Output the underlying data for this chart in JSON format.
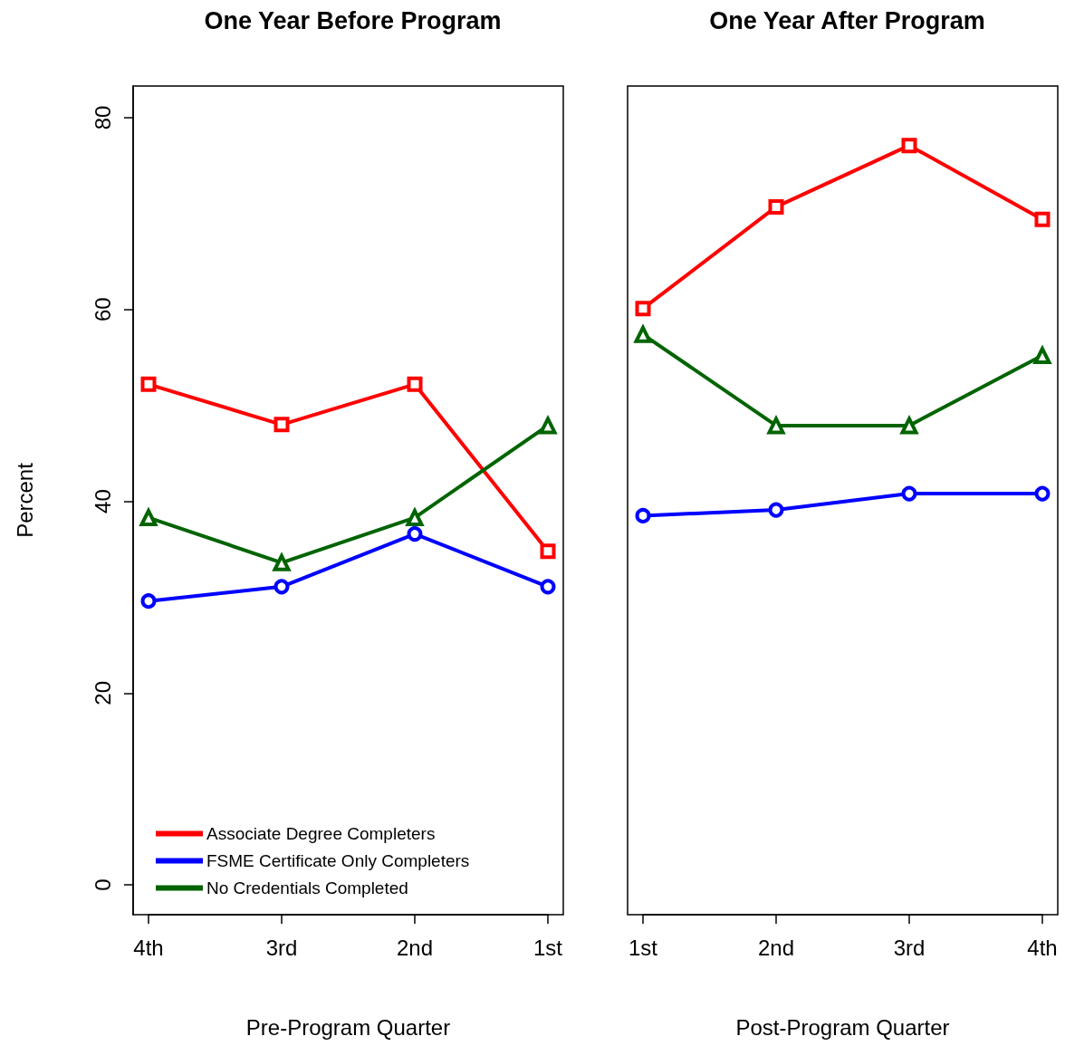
{
  "chart_data": [
    {
      "type": "line",
      "title": "One Year Before Program",
      "xlabel": "Pre-Program Quarter",
      "ylabel": "Percent",
      "categories": [
        "4th",
        "3rd",
        "2nd",
        "1st"
      ],
      "ylim": [
        -3.1,
        83.3
      ],
      "yticks": [
        0,
        20,
        40,
        60,
        80
      ],
      "grid": false,
      "legend": "bottom left",
      "line_style": "solid",
      "series": [
        {
          "name": "Associate Degree Completers",
          "color": "#ff0000",
          "marker": "square",
          "values": [
            52.2,
            48.0,
            52.2,
            34.8
          ]
        },
        {
          "name": "FSME Certificate Only Completers",
          "color": "#0000ff",
          "marker": "circle",
          "values": [
            29.6,
            31.1,
            36.6,
            31.1
          ]
        },
        {
          "name": "No Credentials Completed",
          "color": "#006400",
          "marker": "triangle",
          "values": [
            38.3,
            33.6,
            38.3,
            47.9
          ]
        }
      ]
    },
    {
      "type": "line",
      "title": "One Year After Program",
      "xlabel": "Post-Program Quarter",
      "categories": [
        "1st",
        "2nd",
        "3rd",
        "4th"
      ],
      "ylim": [
        -3.1,
        83.3
      ],
      "yticks": [
        0,
        20,
        40,
        60,
        80
      ],
      "grid": false,
      "legend": false,
      "tick_labels": "x",
      "line_style": "solid",
      "series": [
        {
          "color": "#ff0000",
          "marker": "square",
          "values": [
            60.1,
            70.7,
            77.1,
            69.4
          ]
        },
        {
          "color": "#0000ff",
          "marker": "circle",
          "values": [
            38.5,
            39.1,
            40.8,
            40.8
          ]
        },
        {
          "color": "#006400",
          "marker": "triangle",
          "values": [
            57.4,
            47.9,
            47.9,
            55.2
          ]
        }
      ]
    }
  ]
}
